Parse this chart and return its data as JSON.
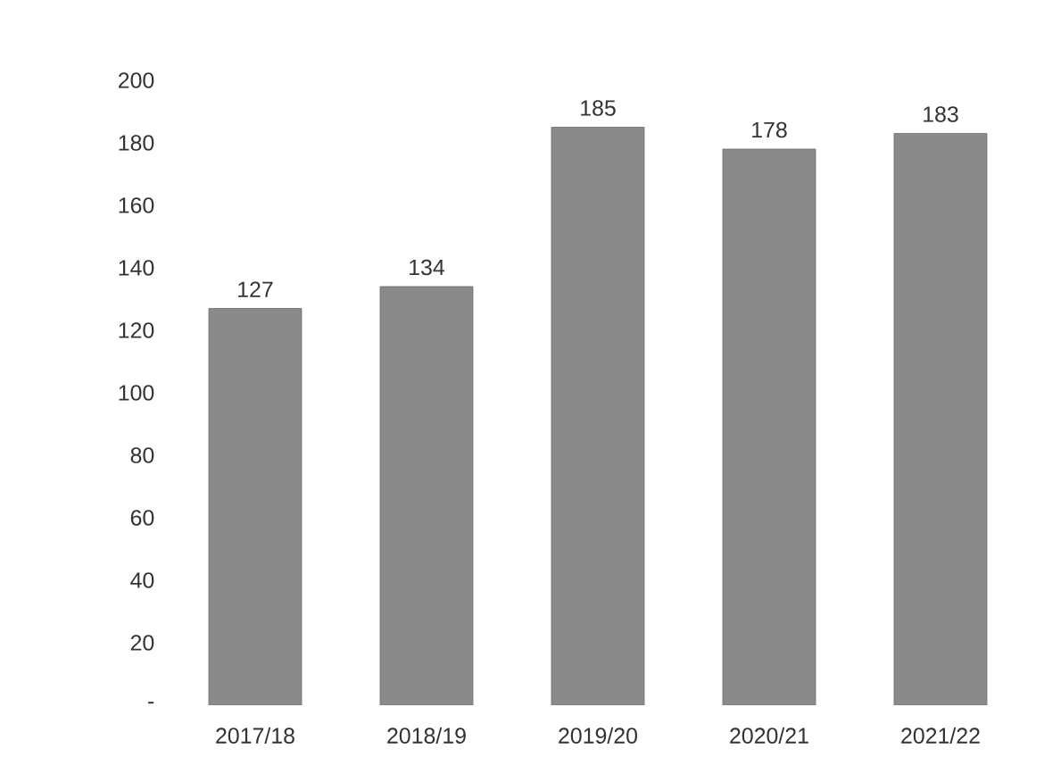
{
  "chart_data": {
    "type": "bar",
    "categories": [
      "2017/18",
      "2018/19",
      "2019/20",
      "2020/21",
      "2021/22"
    ],
    "values": [
      127,
      134,
      185,
      178,
      183
    ],
    "color": "#8a8a8a",
    "ylim": [
      0,
      200
    ],
    "yticks": [
      {
        "value": 0,
        "label": "-"
      },
      20,
      40,
      60,
      80,
      100,
      120,
      140,
      160,
      180,
      200
    ],
    "data_labels": true
  }
}
